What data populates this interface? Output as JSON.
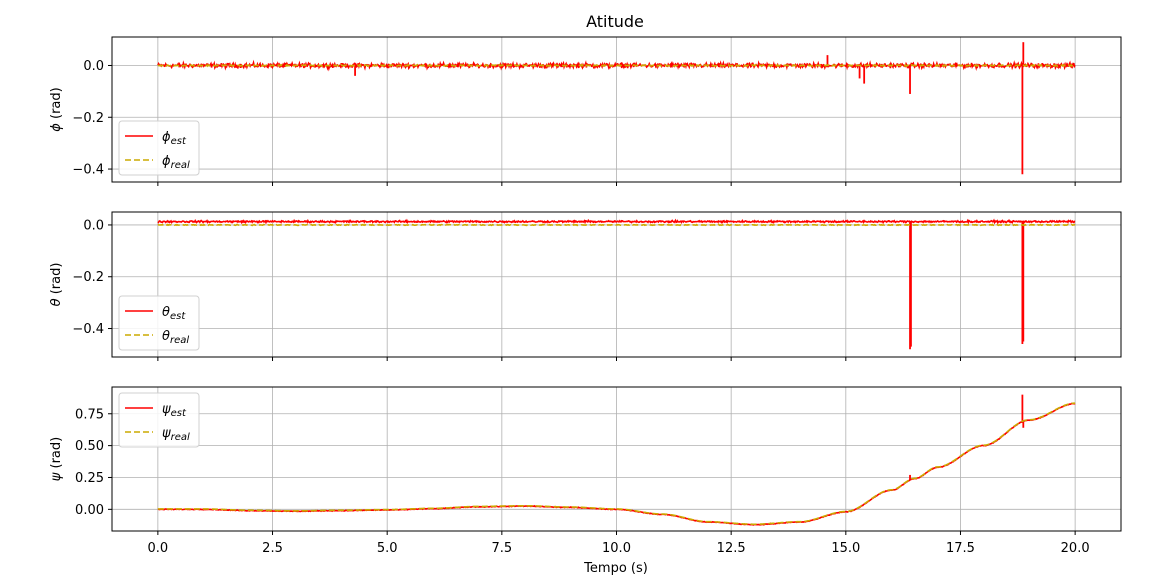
{
  "title": "Atitude",
  "xlabel": "Tempo (s)",
  "colors": {
    "est": "#ff0000",
    "real": "#ccaa00",
    "grid": "#b0b0b0",
    "axes": "#000000"
  },
  "chart_data": [
    {
      "type": "line",
      "ylabel_symbol": "ϕ",
      "ylabel_unit": "(rad)",
      "xlim": [
        -1.0,
        21.0
      ],
      "ylim": [
        -0.45,
        0.11
      ],
      "xticks": [
        0.0,
        2.5,
        5.0,
        7.5,
        10.0,
        12.5,
        15.0,
        17.5,
        20.0
      ],
      "xtick_labels": [
        "0.0",
        "2.5",
        "5.0",
        "7.5",
        "10.0",
        "12.5",
        "15.0",
        "17.5",
        "20.0"
      ],
      "yticks": [
        0.0,
        -0.2,
        -0.4
      ],
      "ytick_labels": [
        "0.0",
        "−0.2",
        "−0.4"
      ],
      "legend_position": "lower-left",
      "series": [
        {
          "symbol": "ϕ",
          "sub": "est",
          "style": "solid",
          "baseline": 0.0,
          "noise": 0.012,
          "spikes": [
            [
              4.3,
              -0.04
            ],
            [
              15.3,
              -0.05
            ],
            [
              15.4,
              -0.07
            ],
            [
              16.4,
              -0.11
            ],
            [
              18.85,
              -0.42
            ],
            [
              18.87,
              0.09
            ],
            [
              14.6,
              0.04
            ]
          ]
        },
        {
          "symbol": "ϕ",
          "sub": "real",
          "style": "dashed",
          "baseline": 0.0,
          "noise": 0.003,
          "spikes": []
        }
      ]
    },
    {
      "type": "line",
      "ylabel_symbol": "θ",
      "ylabel_unit": "(rad)",
      "xlim": [
        -1.0,
        21.0
      ],
      "ylim": [
        -0.51,
        0.05
      ],
      "xticks": [
        0.0,
        2.5,
        5.0,
        7.5,
        10.0,
        12.5,
        15.0,
        17.5,
        20.0
      ],
      "xtick_labels": [
        "0.0",
        "2.5",
        "5.0",
        "7.5",
        "10.0",
        "12.5",
        "15.0",
        "17.5",
        "20.0"
      ],
      "yticks": [
        0.0,
        -0.2,
        -0.4
      ],
      "ytick_labels": [
        "0.0",
        "−0.2",
        "−0.4"
      ],
      "legend_position": "lower-left",
      "series": [
        {
          "symbol": "θ",
          "sub": "est",
          "style": "solid",
          "baseline": 0.013,
          "noise": 0.005,
          "spikes": [
            [
              16.4,
              -0.48
            ],
            [
              16.42,
              -0.47
            ],
            [
              18.85,
              -0.46
            ],
            [
              18.87,
              -0.45
            ]
          ]
        },
        {
          "symbol": "θ",
          "sub": "real",
          "style": "dashed",
          "baseline": 0.0,
          "noise": 0.002,
          "spikes": []
        }
      ]
    },
    {
      "type": "line",
      "ylabel_symbol": "ψ",
      "ylabel_unit": "(rad)",
      "xlim": [
        -1.0,
        21.0
      ],
      "ylim": [
        -0.17,
        0.96
      ],
      "xticks": [
        0.0,
        2.5,
        5.0,
        7.5,
        10.0,
        12.5,
        15.0,
        17.5,
        20.0
      ],
      "xtick_labels": [
        "0.0",
        "2.5",
        "5.0",
        "7.5",
        "10.0",
        "12.5",
        "15.0",
        "17.5",
        "20.0"
      ],
      "yticks": [
        0.0,
        0.25,
        0.5,
        0.75
      ],
      "ytick_labels": [
        "0.00",
        "0.25",
        "0.50",
        "0.75"
      ],
      "legend_position": "upper-left",
      "curve": [
        [
          0,
          0
        ],
        [
          1,
          0
        ],
        [
          2,
          -0.01
        ],
        [
          3,
          -0.015
        ],
        [
          4,
          -0.01
        ],
        [
          5,
          -0.005
        ],
        [
          6,
          0.005
        ],
        [
          7,
          0.02
        ],
        [
          8,
          0.025
        ],
        [
          9,
          0.015
        ],
        [
          10,
          0.0
        ],
        [
          11,
          -0.04
        ],
        [
          12,
          -0.1
        ],
        [
          13,
          -0.12
        ],
        [
          14,
          -0.1
        ],
        [
          15,
          -0.02
        ],
        [
          16,
          0.15
        ],
        [
          16.5,
          0.24
        ],
        [
          17,
          0.33
        ],
        [
          18,
          0.5
        ],
        [
          19,
          0.7
        ],
        [
          20,
          0.83
        ]
      ],
      "series": [
        {
          "symbol": "ψ",
          "sub": "est",
          "style": "solid",
          "offset": 0.0,
          "noise": 0.004,
          "spikes": [
            [
              16.4,
              0.27
            ],
            [
              18.85,
              0.9
            ],
            [
              18.87,
              0.64
            ]
          ]
        },
        {
          "symbol": "ψ",
          "sub": "real",
          "style": "dashed",
          "offset": 0.003,
          "noise": 0.0,
          "spikes": []
        }
      ]
    }
  ]
}
